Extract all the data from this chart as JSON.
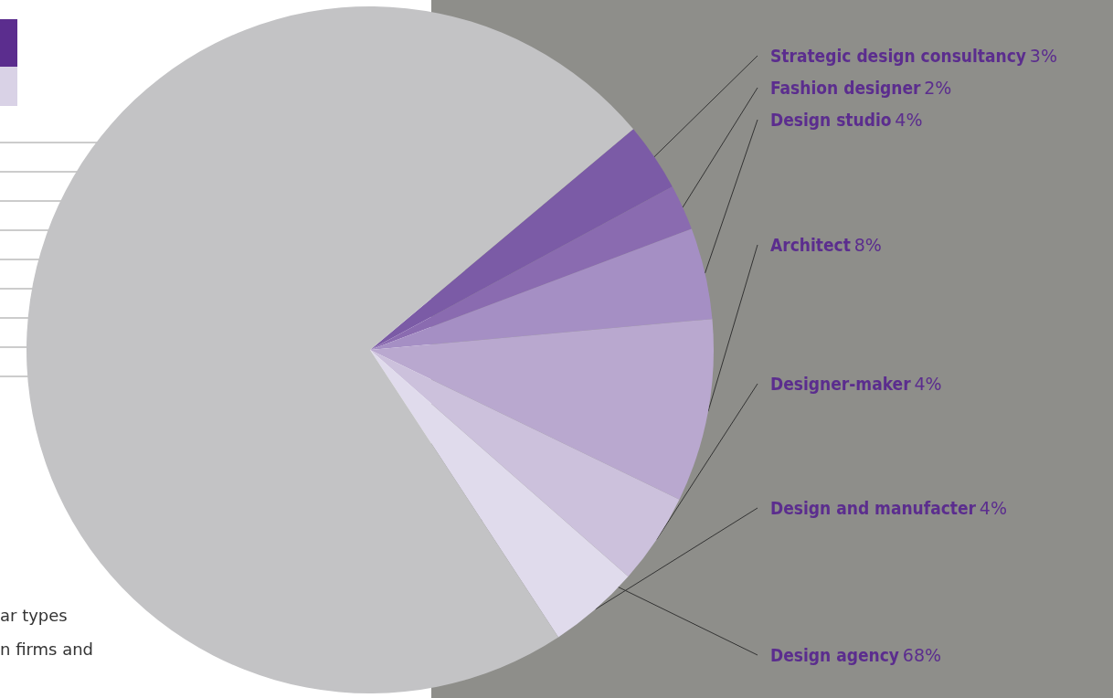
{
  "chart_data": {
    "type": "pie",
    "categories": [
      "Strategic design consultancy",
      "Fashion designer",
      "Design studio",
      "Architect",
      "Designer-maker",
      "Design and manufacter",
      "Design agency"
    ],
    "values": [
      3,
      2,
      4,
      8,
      4,
      4,
      68
    ],
    "colors": [
      "#7b5ba6",
      "#8a6bb0",
      "#a58fc4",
      "#b9a8cf",
      "#ccc1dc",
      "#e0dbec",
      "#c3c3c5"
    ],
    "value_labels": [
      "3%",
      "2%",
      "4%",
      "8%",
      "4%",
      "4%",
      "68%"
    ],
    "annotations": [
      "ar types",
      "n firms and"
    ]
  }
}
